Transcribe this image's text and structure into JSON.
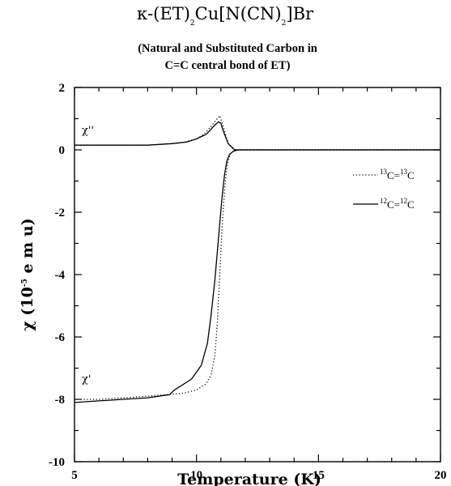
{
  "chart_data": {
    "type": "line",
    "title_parts": [
      "κ-(ET)",
      "2",
      "Cu[N(CN)",
      "2",
      "]Br"
    ],
    "subtitle_lines": [
      "(Natural and Substituted Carbon in",
      "C=C central bond of ET)"
    ],
    "xlabel": "Temperature  (K)",
    "ylabel_parts": [
      "χ (10",
      "-5",
      " e m u)"
    ],
    "xlim": [
      5,
      20
    ],
    "ylim": [
      -10,
      2
    ],
    "xticks": [
      5,
      10,
      15,
      20
    ],
    "yticks": [
      2,
      0,
      -2,
      -4,
      -6,
      -8,
      -10
    ],
    "grid": false,
    "annotations": [
      {
        "text": "χ''",
        "x": 5.25,
        "y": 0.45
      },
      {
        "text": "χ'",
        "x": 5.25,
        "y": -7.55
      }
    ],
    "legend_placement": "right",
    "series": [
      {
        "name_parts": [
          "13",
          "C=",
          "13",
          "C"
        ],
        "style": "dotted",
        "x": [
          5.0,
          6.0,
          7.0,
          8.0,
          9.0,
          9.5,
          10.0,
          10.3,
          10.6,
          10.8,
          10.95,
          11.1,
          11.3,
          11.6,
          12.0,
          14.0,
          17.0,
          20.0
        ],
        "y": [
          0.15,
          0.15,
          0.15,
          0.15,
          0.2,
          0.25,
          0.35,
          0.5,
          0.75,
          0.95,
          1.1,
          0.75,
          0.2,
          0.0,
          0.0,
          0.0,
          0.0,
          0.0
        ]
      },
      {
        "name_parts": [
          "13",
          "C=",
          "13",
          "C"
        ],
        "style": "dotted",
        "x": [
          5.0,
          6.0,
          7.0,
          8.0,
          8.8,
          9.5,
          10.0,
          10.4,
          10.6,
          10.75,
          10.85,
          10.95,
          11.05,
          11.15,
          11.25,
          11.4,
          11.6,
          12.0,
          14.0,
          17.0,
          20.0
        ],
        "y": [
          -8.0,
          -8.0,
          -7.95,
          -7.9,
          -7.85,
          -7.8,
          -7.7,
          -7.5,
          -7.2,
          -6.6,
          -5.6,
          -4.0,
          -2.5,
          -1.3,
          -0.5,
          -0.1,
          0.0,
          0.0,
          0.0,
          0.0,
          0.0
        ]
      },
      {
        "name_parts": [
          "12",
          "C=",
          "12",
          "C"
        ],
        "style": "solid",
        "x": [
          5.0,
          6.0,
          7.0,
          8.0,
          9.0,
          9.6,
          10.0,
          10.4,
          10.7,
          10.9,
          11.0,
          11.1,
          11.3,
          11.55,
          11.8,
          14.0,
          17.0,
          20.0
        ],
        "y": [
          0.15,
          0.15,
          0.15,
          0.15,
          0.2,
          0.25,
          0.35,
          0.5,
          0.75,
          0.9,
          0.85,
          0.6,
          0.2,
          0.0,
          0.0,
          0.0,
          0.0,
          0.0
        ]
      },
      {
        "name_parts": [
          "12",
          "C=",
          "12",
          "C"
        ],
        "style": "solid",
        "x": [
          5.0,
          6.0,
          7.0,
          8.0,
          8.9,
          9.1,
          9.4,
          9.8,
          10.2,
          10.45,
          10.6,
          10.75,
          10.85,
          10.95,
          11.05,
          11.15,
          11.25,
          11.35,
          11.5,
          11.7,
          12.0,
          14.0,
          17.0,
          20.0
        ],
        "y": [
          -8.1,
          -8.05,
          -8.0,
          -7.95,
          -7.85,
          -7.7,
          -7.55,
          -7.35,
          -6.9,
          -6.2,
          -5.3,
          -4.2,
          -3.3,
          -2.4,
          -1.5,
          -0.8,
          -0.35,
          -0.15,
          -0.05,
          0.0,
          0.0,
          0.0,
          0.0,
          0.0
        ]
      }
    ]
  }
}
